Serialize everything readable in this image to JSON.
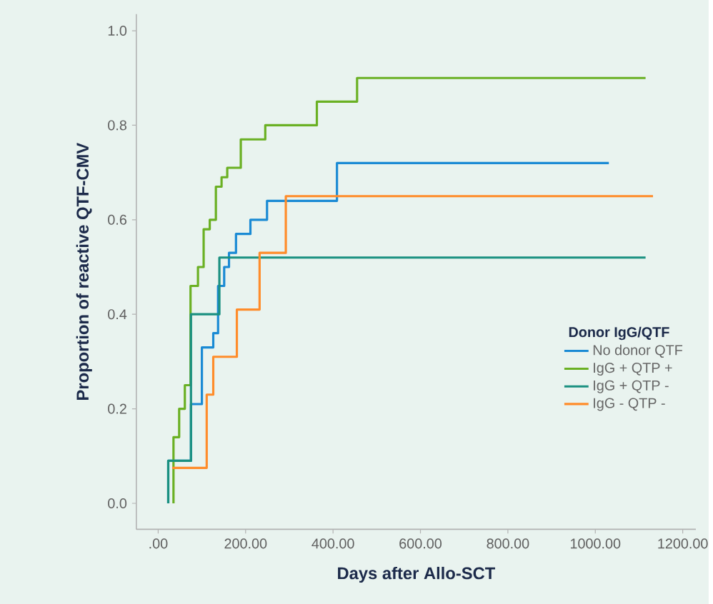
{
  "chart_data": {
    "type": "step",
    "xlabel": "Days after Allo-SCT",
    "ylabel": "Proportion of reactive QTF-CMV",
    "legend_title": "Donor IgG/QTF",
    "legend": "right",
    "grid": false,
    "marker": "none",
    "line_style": "solid",
    "xlim": [
      -50,
      1230
    ],
    "ylim": [
      -0.055,
      1.035
    ],
    "xticks": [
      {
        "value": 0,
        "label": ".00"
      },
      {
        "value": 200,
        "label": "200.00"
      },
      {
        "value": 400,
        "label": "400.00"
      },
      {
        "value": 600,
        "label": "600.00"
      },
      {
        "value": 800,
        "label": "800.00"
      },
      {
        "value": 1000,
        "label": "1000.00"
      },
      {
        "value": 1200,
        "label": "1200.00"
      }
    ],
    "yticks": [
      {
        "value": 0,
        "label": "0.0"
      },
      {
        "value": 0.2,
        "label": "0.2"
      },
      {
        "value": 0.4,
        "label": "0.4"
      },
      {
        "value": 0.6,
        "label": "0.6"
      },
      {
        "value": 0.8,
        "label": "0.8"
      },
      {
        "value": 1.0,
        "label": "1.0"
      }
    ],
    "series": [
      {
        "name": "No donor QTF",
        "color": "#1a8ad4",
        "x": [
          23,
          23,
          75,
          100,
          126,
          137,
          151,
          162,
          178,
          211,
          249,
          409,
          1031
        ],
        "values": [
          0,
          0.09,
          0.21,
          0.33,
          0.36,
          0.46,
          0.5,
          0.53,
          0.57,
          0.6,
          0.64,
          0.72,
          0.72
        ]
      },
      {
        "name": "IgG + QTP +",
        "color": "#6ab023",
        "x": [
          35,
          35,
          48,
          61,
          74,
          91,
          104,
          118,
          132,
          145,
          158,
          189,
          245,
          363,
          455,
          1115
        ],
        "values": [
          0,
          0.14,
          0.2,
          0.25,
          0.46,
          0.5,
          0.58,
          0.6,
          0.67,
          0.69,
          0.71,
          0.77,
          0.8,
          0.85,
          0.9,
          0.9
        ]
      },
      {
        "name": "IgG + QTP -",
        "color": "#1a9080",
        "x": [
          23,
          23,
          75,
          140,
          1115
        ],
        "values": [
          0,
          0.09,
          0.4,
          0.52,
          0.52
        ]
      },
      {
        "name": "IgG - QTP -",
        "color": "#ff8c2a",
        "x": [
          32,
          111,
          126,
          180,
          232,
          292,
          1132
        ],
        "values": [
          0.075,
          0.23,
          0.31,
          0.41,
          0.53,
          0.65,
          0.65
        ]
      }
    ]
  }
}
